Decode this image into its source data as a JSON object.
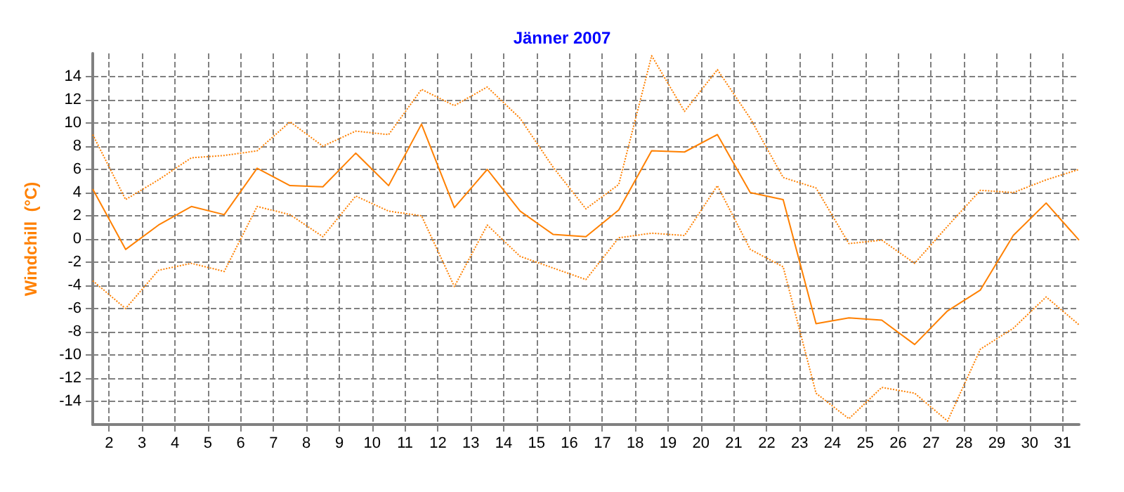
{
  "chart_data": {
    "type": "line",
    "title": "Jänner 2007",
    "ylabel": "Windchill  (°C)",
    "x": [
      1.5,
      2.5,
      3.5,
      4.5,
      5.5,
      6.5,
      7.5,
      8.5,
      9.5,
      10.5,
      11.5,
      12.5,
      13.5,
      14.5,
      15.5,
      16.5,
      17.5,
      18.5,
      19.5,
      20.5,
      21.5,
      22.5,
      23.5,
      24.5,
      25.5,
      26.5,
      27.5,
      28.5,
      29.5,
      30.5,
      31.5
    ],
    "series": [
      {
        "color": "#ff8000",
        "line_style": "dotted",
        "values": [
          9.0,
          3.4,
          5.1,
          7.0,
          7.2,
          7.6,
          10.1,
          8.0,
          9.3,
          9.0,
          12.9,
          11.5,
          13.1,
          10.4,
          6.2,
          2.6,
          4.7,
          15.8,
          11.0,
          14.6,
          10.4,
          5.3,
          4.4,
          -0.4,
          -0.1,
          -2.1,
          1.1,
          4.2,
          4.0,
          5.1,
          6.0
        ]
      },
      {
        "color": "#ff8000",
        "line_style": "solid",
        "values": [
          4.3,
          -0.9,
          1.2,
          2.8,
          2.1,
          6.1,
          4.6,
          4.5,
          7.4,
          4.6,
          9.9,
          2.7,
          6.0,
          2.4,
          0.4,
          0.2,
          2.5,
          7.6,
          7.5,
          9.0,
          4.0,
          3.4,
          -7.3,
          -6.8,
          -7.0,
          -9.1,
          -6.2,
          -4.4,
          0.3,
          3.1,
          -0.1
        ]
      },
      {
        "color": "#ff8000",
        "line_style": "dotted",
        "values": [
          -3.6,
          -6.0,
          -2.7,
          -2.1,
          -2.8,
          2.8,
          2.1,
          0.2,
          3.7,
          2.4,
          2.0,
          -4.1,
          1.2,
          -1.5,
          -2.5,
          -3.5,
          0.1,
          0.5,
          0.3,
          4.6,
          -0.9,
          -2.4,
          -13.3,
          -15.5,
          -12.8,
          -13.3,
          -15.7,
          -9.5,
          -7.7,
          -5.0,
          -7.4
        ]
      }
    ],
    "xlim": [
      1.5,
      31.5
    ],
    "xticks": [
      2,
      3,
      4,
      5,
      6,
      7,
      8,
      9,
      10,
      11,
      12,
      13,
      14,
      15,
      16,
      17,
      18,
      19,
      20,
      21,
      22,
      23,
      24,
      25,
      26,
      27,
      28,
      29,
      30,
      31
    ],
    "ylim": [
      -16,
      16
    ],
    "yticks": [
      -14,
      -12,
      -10,
      -8,
      -6,
      -4,
      -2,
      0,
      2,
      4,
      6,
      8,
      10,
      12,
      14
    ],
    "grid": true,
    "marker": "none"
  }
}
